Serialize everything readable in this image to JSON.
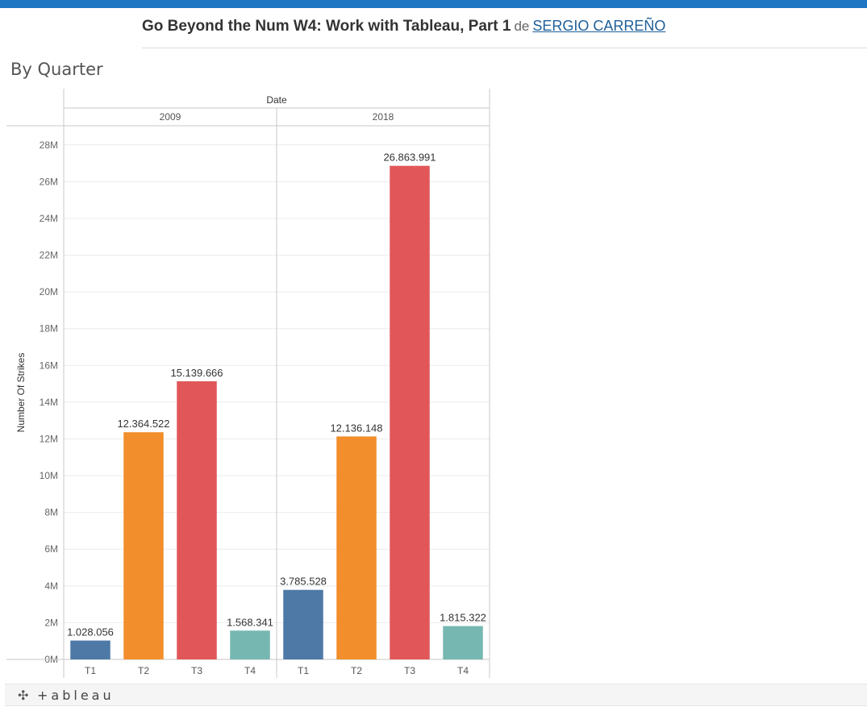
{
  "header": {
    "title": "Go Beyond the Num W4: Work with Tableau, Part 1",
    "by_label": "de",
    "author": "SERGIO CARREÑO"
  },
  "sheet": {
    "title": "By Quarter"
  },
  "footer": {
    "logo_text": "+ableau",
    "logo_icon": "tableau-plus-icon"
  },
  "colors": {
    "T1": "#4e79a7",
    "T2": "#f28e2b",
    "T3": "#e15759",
    "T4": "#76b7b2",
    "topbar": "#1f77c4"
  },
  "chart_data": {
    "type": "bar",
    "column_header": "Date",
    "ylabel": "Number Of Strikes",
    "ylim": [
      0,
      29000000
    ],
    "yticks": [
      "0M",
      "2M",
      "4M",
      "6M",
      "8M",
      "10M",
      "12M",
      "14M",
      "16M",
      "18M",
      "20M",
      "22M",
      "24M",
      "26M",
      "28M"
    ],
    "ytick_values": [
      0,
      2000000,
      4000000,
      6000000,
      8000000,
      10000000,
      12000000,
      14000000,
      16000000,
      18000000,
      20000000,
      22000000,
      24000000,
      26000000,
      28000000
    ],
    "panes": [
      {
        "year": "2009",
        "categories": [
          "T1",
          "T2",
          "T3",
          "T4"
        ],
        "values": [
          1028056,
          12364522,
          15139666,
          1568341
        ],
        "labels": [
          "1.028.056",
          "12.364.522",
          "15.139.666",
          "1.568.341"
        ]
      },
      {
        "year": "2018",
        "categories": [
          "T1",
          "T2",
          "T3",
          "T4"
        ],
        "values": [
          3785528,
          12136148,
          26863991,
          1815322
        ],
        "labels": [
          "3.785.528",
          "12.136.148",
          "26.863.991",
          "1.815.322"
        ]
      }
    ],
    "grid": true,
    "legend": "none"
  }
}
